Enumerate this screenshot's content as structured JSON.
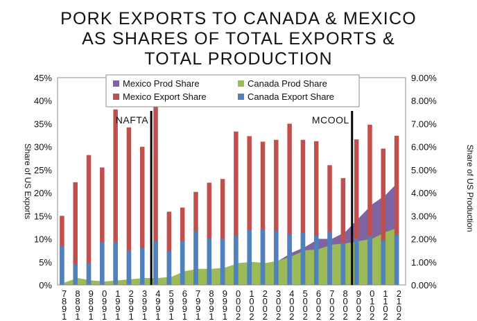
{
  "chart_data": {
    "type": "bar",
    "title_lines": [
      "PORK EXPORTS TO CANADA & MEXICO",
      "AS SHARES OF TOTAL EXPORTS &",
      "TOTAL PRODUCTION"
    ],
    "ylabel_left": "Share of US Exports",
    "ylabel_right": "Share of US Production",
    "left_axis": {
      "ticks": [
        "0%",
        "5%",
        "10%",
        "15%",
        "20%",
        "25%",
        "30%",
        "35%",
        "40%",
        "45%"
      ],
      "ylim": [
        0,
        45
      ]
    },
    "right_axis": {
      "ticks": [
        "0.00%",
        "1.00%",
        "2.00%",
        "3.00%",
        "4.00%",
        "5.00%",
        "6.00%",
        "7.00%",
        "8.00%",
        "9.00%"
      ],
      "ylim": [
        0,
        9
      ]
    },
    "categories": [
      "1987",
      "1988",
      "1989",
      "1990",
      "1991",
      "1992",
      "1993",
      "1994",
      "1995",
      "1996",
      "1997",
      "1998",
      "1999",
      "2000",
      "2001",
      "2002",
      "2003",
      "2004",
      "2005",
      "2006",
      "2007",
      "2008",
      "2009",
      "2010",
      "2011",
      "2012"
    ],
    "series": [
      {
        "name": "Mexico Prod Share",
        "kind": "area",
        "axis": "right",
        "color": "#8064a2",
        "values": [
          0.05,
          0.05,
          0.05,
          0.05,
          0.05,
          0.05,
          0.1,
          0.15,
          0.15,
          0.2,
          0.3,
          0.4,
          0.7,
          0.65,
          0.8,
          0.9,
          1.05,
          1.4,
          1.65,
          2.0,
          2.0,
          2.3,
          2.9,
          3.5,
          3.9,
          4.5
        ]
      },
      {
        "name": "Canada Prod Share",
        "kind": "area",
        "axis": "right",
        "color": "#9bbb59",
        "values": [
          0.1,
          0.3,
          0.2,
          0.15,
          0.2,
          0.25,
          0.3,
          0.3,
          0.35,
          0.6,
          0.7,
          0.7,
          0.75,
          0.95,
          1.0,
          0.95,
          1.05,
          1.25,
          1.5,
          1.55,
          1.75,
          1.8,
          1.9,
          2.0,
          2.3,
          2.5
        ]
      },
      {
        "name": "Mexico Export Share",
        "kind": "bar",
        "axis": "left",
        "color": "#c0504d",
        "values": [
          15,
          22.3,
          28.2,
          25.5,
          38.1,
          34.2,
          30.0,
          38.8,
          15.9,
          16.8,
          20.2,
          22.2,
          23.0,
          33.3,
          32.3,
          31.1,
          31.5,
          35.0,
          31.5,
          31.2,
          26.0,
          23.2,
          31.6,
          34.8,
          29.6,
          32.4
        ]
      },
      {
        "name": "Canada Export Share",
        "kind": "bar",
        "axis": "left",
        "color": "#4f81bd",
        "values": [
          8.5,
          4.5,
          4.8,
          9.2,
          9.2,
          7.5,
          8.0,
          9.6,
          7.3,
          9.6,
          11.7,
          10.1,
          10.0,
          10.7,
          12.0,
          12.0,
          11.6,
          11.0,
          11.3,
          10.7,
          11.5,
          9.1,
          10.0,
          10.6,
          9.7,
          10.9
        ]
      }
    ],
    "annotations": [
      {
        "text": "NAFTA",
        "after_category": "1993"
      },
      {
        "text": "MCOOL",
        "after_category": "2008"
      }
    ],
    "legend": "top-center",
    "grid": false
  }
}
